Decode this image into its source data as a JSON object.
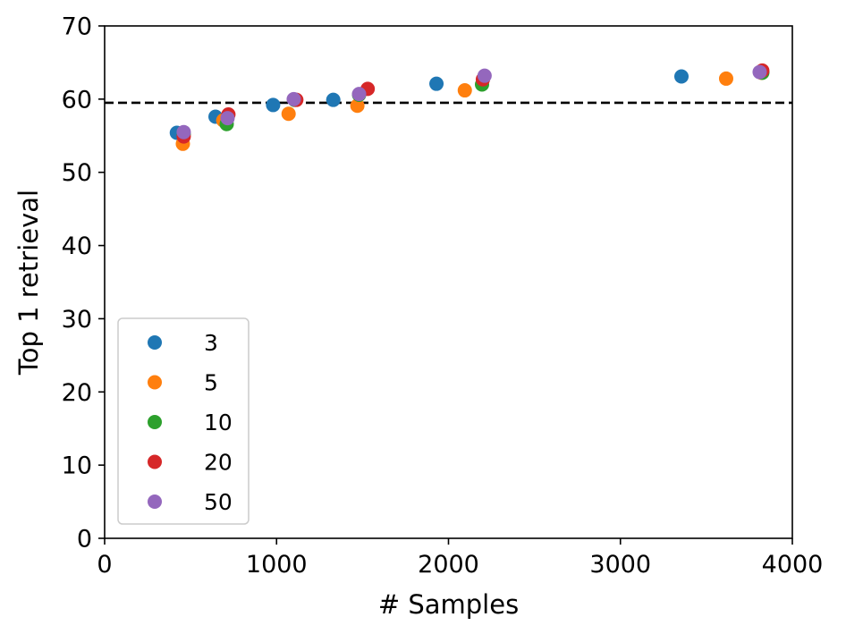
{
  "chart_data": {
    "type": "scatter",
    "title": "",
    "xlabel": "# Samples",
    "ylabel": "Top 1 retrieval",
    "xlim": [
      0,
      4000
    ],
    "ylim": [
      0,
      70
    ],
    "xticks": [
      "0",
      "1000",
      "2000",
      "3000",
      "4000"
    ],
    "yticks": [
      "0",
      "10",
      "20",
      "30",
      "40",
      "50",
      "60",
      "70"
    ],
    "grid": false,
    "legend_position": "lower-left",
    "reference_line": {
      "style": "dashed",
      "color": "#000000",
      "y": 59.5
    },
    "series": [
      {
        "name": "3",
        "color": "#1f77b4",
        "points": [
          {
            "x": 420,
            "y": 55.4
          },
          {
            "x": 645,
            "y": 57.6
          },
          {
            "x": 980,
            "y": 59.2
          },
          {
            "x": 1330,
            "y": 59.9
          },
          {
            "x": 1930,
            "y": 62.1
          },
          {
            "x": 3355,
            "y": 63.1
          },
          {
            "x": 3825,
            "y": 63.7
          }
        ]
      },
      {
        "name": "5",
        "color": "#ff7f0e",
        "points": [
          {
            "x": 455,
            "y": 53.9
          },
          {
            "x": 690,
            "y": 57.1
          },
          {
            "x": 1070,
            "y": 58.0
          },
          {
            "x": 1470,
            "y": 59.1
          },
          {
            "x": 2095,
            "y": 61.2
          },
          {
            "x": 3615,
            "y": 62.8
          },
          {
            "x": 3820,
            "y": 63.6
          }
        ]
      },
      {
        "name": "10",
        "color": "#2ca02c",
        "points": [
          {
            "x": 460,
            "y": 55.2
          },
          {
            "x": 710,
            "y": 56.6
          },
          {
            "x": 1105,
            "y": 59.9
          },
          {
            "x": 1480,
            "y": 60.6
          },
          {
            "x": 2195,
            "y": 62.0
          },
          {
            "x": 3825,
            "y": 63.6
          }
        ]
      },
      {
        "name": "20",
        "color": "#d62728",
        "points": [
          {
            "x": 460,
            "y": 54.9
          },
          {
            "x": 720,
            "y": 57.9
          },
          {
            "x": 1115,
            "y": 59.9
          },
          {
            "x": 1530,
            "y": 61.4
          },
          {
            "x": 2200,
            "y": 62.7
          },
          {
            "x": 3825,
            "y": 63.9
          }
        ]
      },
      {
        "name": "50",
        "color": "#9467bd",
        "points": [
          {
            "x": 460,
            "y": 55.5
          },
          {
            "x": 715,
            "y": 57.4
          },
          {
            "x": 1100,
            "y": 60.0
          },
          {
            "x": 1480,
            "y": 60.7
          },
          {
            "x": 2210,
            "y": 63.2
          },
          {
            "x": 3810,
            "y": 63.7
          }
        ]
      }
    ]
  }
}
